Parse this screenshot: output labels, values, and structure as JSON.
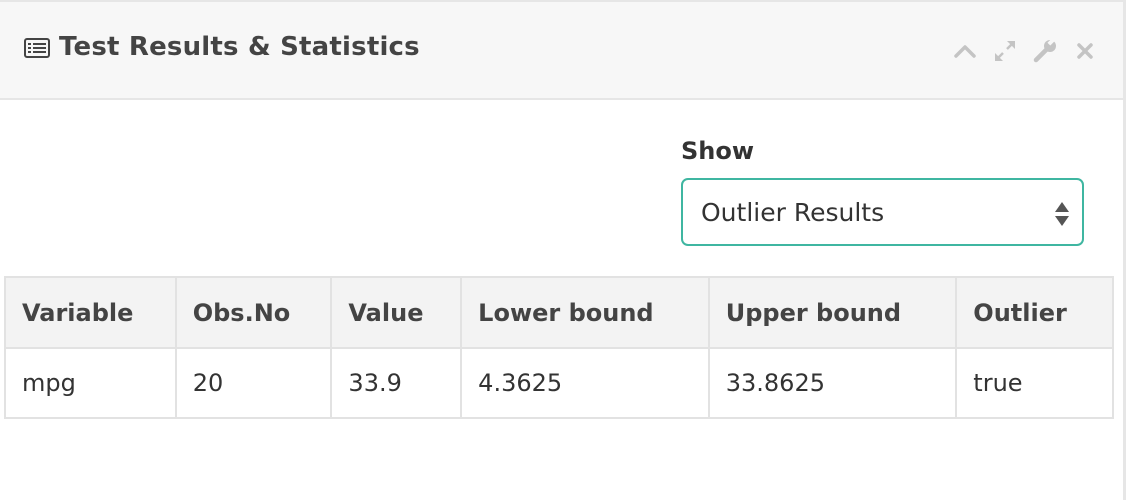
{
  "panel": {
    "title": "Test Results & Statistics",
    "title_icon": "list-alt-icon",
    "tools": [
      {
        "name": "collapse-icon",
        "symbol": "chevron-up"
      },
      {
        "name": "fullscreen-icon",
        "symbol": "expand"
      },
      {
        "name": "settings-icon",
        "symbol": "wrench"
      },
      {
        "name": "close-icon",
        "symbol": "times"
      }
    ]
  },
  "show": {
    "label": "Show",
    "selected": "Outlier Results"
  },
  "table": {
    "headers": [
      "Variable",
      "Obs.No",
      "Value",
      "Lower bound",
      "Upper bound",
      "Outlier"
    ],
    "rows": [
      [
        "mpg",
        "20",
        "33.9",
        "4.3625",
        "33.8625",
        "true"
      ]
    ]
  },
  "colors": {
    "accent_border": "#3fb6a1",
    "header_bg": "#f7f7f7",
    "tool_icon": "#c4c4c4"
  }
}
